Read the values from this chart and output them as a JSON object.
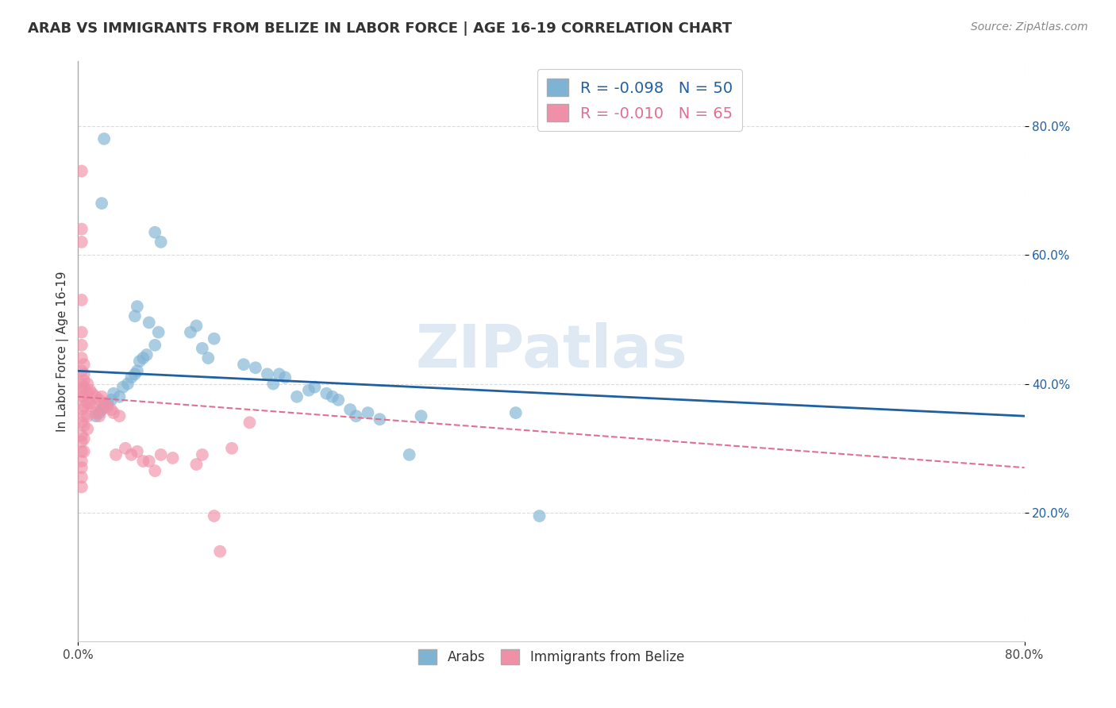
{
  "title": "ARAB VS IMMIGRANTS FROM BELIZE IN LABOR FORCE | AGE 16-19 CORRELATION CHART",
  "source_text": "Source: ZipAtlas.com",
  "ylabel": "In Labor Force | Age 16-19",
  "xlim": [
    0.0,
    0.8
  ],
  "ylim": [
    0.0,
    0.9
  ],
  "arab_color": "#7fb3d3",
  "belize_color": "#f090a8",
  "arab_line_color": "#2060a0",
  "belize_line_color": "#e07090",
  "watermark": "ZIPatlas",
  "background_color": "#ffffff",
  "grid_color": "#cccccc",
  "arab_R": "-0.098",
  "arab_N": "50",
  "belize_R": "-0.010",
  "belize_N": "65",
  "arab_points_x": [
    0.022,
    0.02,
    0.065,
    0.07,
    0.05,
    0.048,
    0.06,
    0.068,
    0.065,
    0.058,
    0.055,
    0.052,
    0.05,
    0.048,
    0.045,
    0.042,
    0.038,
    0.035,
    0.03,
    0.028,
    0.025,
    0.022,
    0.02,
    0.018,
    0.015,
    0.1,
    0.095,
    0.115,
    0.105,
    0.11,
    0.14,
    0.15,
    0.16,
    0.165,
    0.17,
    0.175,
    0.185,
    0.195,
    0.2,
    0.21,
    0.215,
    0.22,
    0.23,
    0.235,
    0.245,
    0.255,
    0.28,
    0.29,
    0.37,
    0.39
  ],
  "arab_points_y": [
    0.78,
    0.68,
    0.635,
    0.62,
    0.52,
    0.505,
    0.495,
    0.48,
    0.46,
    0.445,
    0.44,
    0.435,
    0.42,
    0.415,
    0.41,
    0.4,
    0.395,
    0.38,
    0.385,
    0.375,
    0.37,
    0.365,
    0.36,
    0.355,
    0.35,
    0.49,
    0.48,
    0.47,
    0.455,
    0.44,
    0.43,
    0.425,
    0.415,
    0.4,
    0.415,
    0.41,
    0.38,
    0.39,
    0.395,
    0.385,
    0.38,
    0.375,
    0.36,
    0.35,
    0.355,
    0.345,
    0.29,
    0.35,
    0.355,
    0.195
  ],
  "belize_points_x": [
    0.003,
    0.003,
    0.003,
    0.003,
    0.003,
    0.003,
    0.003,
    0.003,
    0.003,
    0.003,
    0.003,
    0.003,
    0.003,
    0.003,
    0.003,
    0.003,
    0.003,
    0.003,
    0.003,
    0.003,
    0.005,
    0.005,
    0.005,
    0.005,
    0.005,
    0.005,
    0.005,
    0.005,
    0.005,
    0.005,
    0.008,
    0.008,
    0.008,
    0.008,
    0.008,
    0.01,
    0.01,
    0.012,
    0.012,
    0.015,
    0.015,
    0.018,
    0.018,
    0.02,
    0.02,
    0.022,
    0.025,
    0.028,
    0.03,
    0.032,
    0.035,
    0.04,
    0.045,
    0.05,
    0.055,
    0.06,
    0.065,
    0.07,
    0.08,
    0.1,
    0.105,
    0.115,
    0.12,
    0.13,
    0.145
  ],
  "belize_points_y": [
    0.73,
    0.64,
    0.62,
    0.53,
    0.48,
    0.46,
    0.44,
    0.42,
    0.4,
    0.39,
    0.38,
    0.36,
    0.34,
    0.32,
    0.31,
    0.295,
    0.28,
    0.27,
    0.255,
    0.24,
    0.43,
    0.415,
    0.405,
    0.395,
    0.38,
    0.365,
    0.35,
    0.335,
    0.315,
    0.295,
    0.4,
    0.385,
    0.37,
    0.35,
    0.33,
    0.39,
    0.37,
    0.385,
    0.365,
    0.38,
    0.355,
    0.375,
    0.35,
    0.38,
    0.36,
    0.37,
    0.365,
    0.36,
    0.355,
    0.29,
    0.35,
    0.3,
    0.29,
    0.295,
    0.28,
    0.28,
    0.265,
    0.29,
    0.285,
    0.275,
    0.29,
    0.195,
    0.14,
    0.3,
    0.34
  ]
}
